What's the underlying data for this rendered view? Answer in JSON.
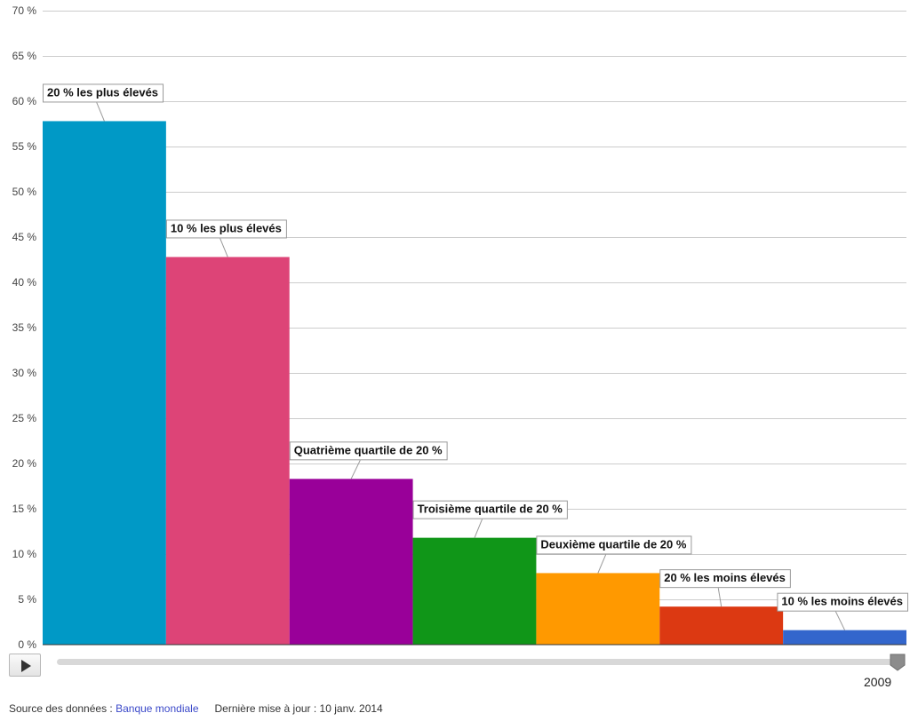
{
  "chart_data": {
    "type": "bar",
    "categories": [
      "20 % les plus élevés",
      "10 % les plus élevés",
      "Quatrième quartile de 20 %",
      "Troisième quartile de 20 %",
      "Deuxième quartile de 20 %",
      "20 % les moins élevés",
      "10 % les moins élevés"
    ],
    "values": [
      57.8,
      42.8,
      18.3,
      11.8,
      7.9,
      4.2,
      1.6
    ],
    "colors": [
      "#0099c6",
      "#dd4477",
      "#990099",
      "#109618",
      "#ff9900",
      "#dc3912",
      "#3366cc"
    ],
    "ylim": [
      0,
      70
    ],
    "yticks": [
      0,
      5,
      10,
      15,
      20,
      25,
      30,
      35,
      40,
      45,
      50,
      55,
      60,
      65,
      70
    ],
    "ytick_suffix": " %",
    "grid": true,
    "year": "2009"
  },
  "controls": {
    "play_icon": "play-icon",
    "year_label": "2009"
  },
  "footer": {
    "source_prefix": "Source des données : ",
    "source_link": "Banque mondiale",
    "updated": "Dernière mise à jour : 10 janv. 2014"
  }
}
